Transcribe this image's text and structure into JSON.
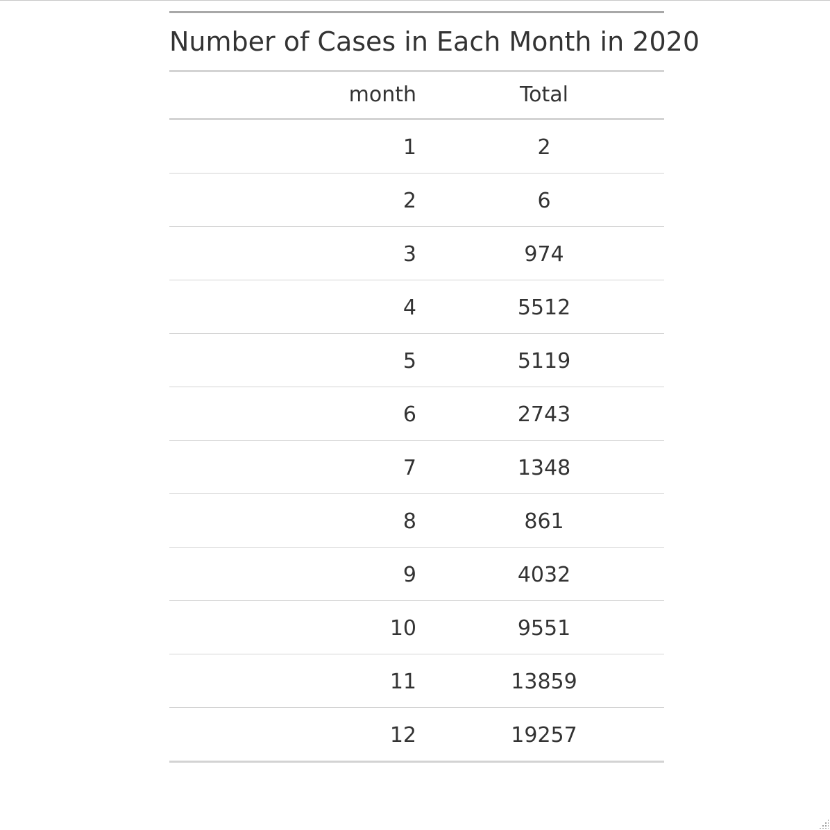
{
  "table": {
    "title": "Number of Cases in Each Month in 2020",
    "columns": {
      "month": "month",
      "total": "Total"
    },
    "rows": [
      {
        "month": "1",
        "total": "2"
      },
      {
        "month": "2",
        "total": "6"
      },
      {
        "month": "3",
        "total": "974"
      },
      {
        "month": "4",
        "total": "5512"
      },
      {
        "month": "5",
        "total": "5119"
      },
      {
        "month": "6",
        "total": "2743"
      },
      {
        "month": "7",
        "total": "1348"
      },
      {
        "month": "8",
        "total": "861"
      },
      {
        "month": "9",
        "total": "4032"
      },
      {
        "month": "10",
        "total": "9551"
      },
      {
        "month": "11",
        "total": "13859"
      },
      {
        "month": "12",
        "total": "19257"
      }
    ]
  }
}
